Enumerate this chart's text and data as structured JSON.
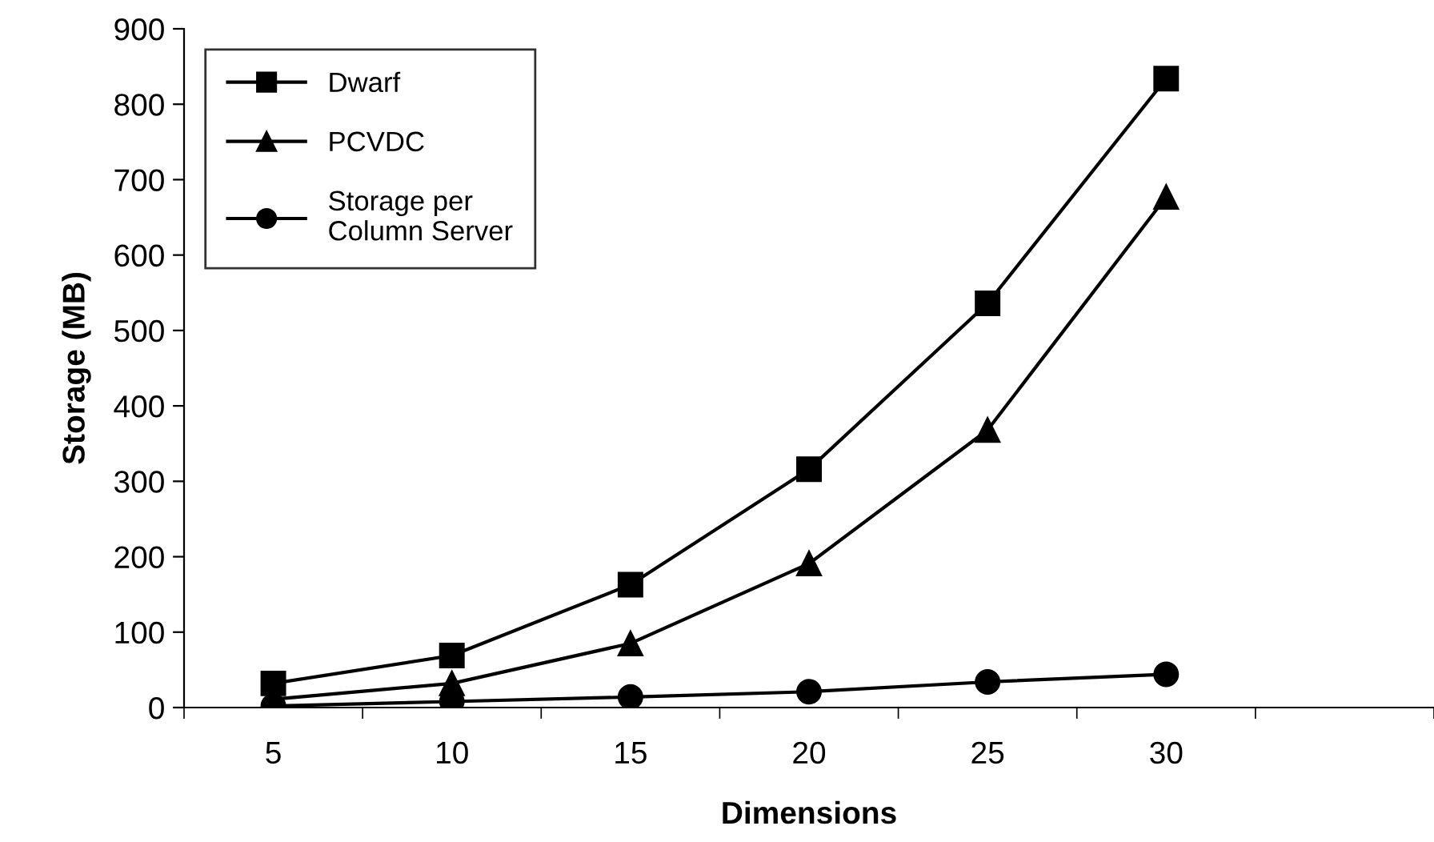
{
  "chart_data": {
    "type": "line",
    "xlabel": "Dimensions",
    "ylabel": "Storage (MB)",
    "categories": [
      "5",
      "10",
      "15",
      "20",
      "25",
      "30",
      null
    ],
    "ylim": [
      0,
      900
    ],
    "yticks": [
      0,
      100,
      200,
      300,
      400,
      500,
      600,
      700,
      800,
      900
    ],
    "grid": false,
    "legend": "top left",
    "line_style": "solid",
    "series": [
      {
        "name": "Dwarf",
        "color": "#000000",
        "marker": "square",
        "values": [
          32,
          69,
          163,
          316,
          536,
          834,
          null
        ]
      },
      {
        "name": "PCVDC",
        "color": "#000000",
        "marker": "triangle",
        "values": [
          11,
          32,
          85,
          191,
          368,
          677,
          null
        ]
      },
      {
        "name": "Storage per\nColumn Server",
        "color": "#000000",
        "marker": "circle",
        "values": [
          2,
          8,
          14,
          21,
          34,
          44,
          null
        ]
      }
    ]
  }
}
